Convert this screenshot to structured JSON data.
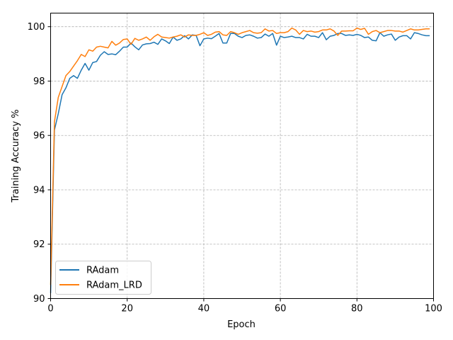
{
  "chart_data": {
    "type": "line",
    "xlabel": "Epoch",
    "ylabel": "Training Accuracy %",
    "xlim": [
      0,
      100
    ],
    "ylim": [
      90,
      100.5
    ],
    "xticks": [
      0,
      20,
      40,
      60,
      80,
      100
    ],
    "yticks": [
      90,
      92,
      94,
      96,
      98,
      100
    ],
    "grid": true,
    "legend_position": "lower-left",
    "series": [
      {
        "name": "RAdam",
        "color": "#1f77b4",
        "x": [
          0,
          1,
          2,
          3,
          4,
          5,
          6,
          7,
          8,
          9,
          10,
          11,
          12,
          13,
          14,
          15,
          16,
          17,
          18,
          19,
          20,
          21,
          22,
          23,
          24,
          25,
          26,
          27,
          28,
          29,
          30,
          31,
          32,
          33,
          34,
          35,
          36,
          37,
          38,
          39,
          40,
          41,
          42,
          43,
          44,
          45,
          46,
          47,
          48,
          49,
          50,
          51,
          52,
          53,
          54,
          55,
          56,
          57,
          58,
          59,
          60,
          61,
          62,
          63,
          64,
          65,
          66,
          67,
          68,
          69,
          70,
          71,
          72,
          73,
          74,
          75,
          76,
          77,
          78,
          79,
          80,
          81,
          82,
          83,
          84,
          85,
          86,
          87,
          88,
          89,
          90,
          91,
          92,
          93,
          94,
          95,
          96,
          97,
          98,
          99
        ],
        "y": [
          90.2,
          96.2,
          96.8,
          97.5,
          97.75,
          98.1,
          98.2,
          98.1,
          98.4,
          98.65,
          98.4,
          98.68,
          98.72,
          98.95,
          99.08,
          98.98,
          99.0,
          98.97,
          99.1,
          99.25,
          99.25,
          99.4,
          99.26,
          99.15,
          99.33,
          99.37,
          99.38,
          99.43,
          99.35,
          99.55,
          99.48,
          99.38,
          99.62,
          99.5,
          99.55,
          99.67,
          99.55,
          99.7,
          99.68,
          99.3,
          99.55,
          99.58,
          99.56,
          99.65,
          99.75,
          99.4,
          99.4,
          99.75,
          99.75,
          99.65,
          99.6,
          99.68,
          99.7,
          99.65,
          99.58,
          99.6,
          99.73,
          99.65,
          99.75,
          99.32,
          99.65,
          99.6,
          99.62,
          99.65,
          99.6,
          99.6,
          99.55,
          99.72,
          99.65,
          99.65,
          99.6,
          99.78,
          99.52,
          99.65,
          99.68,
          99.75,
          99.75,
          99.68,
          99.7,
          99.68,
          99.72,
          99.68,
          99.6,
          99.62,
          99.5,
          99.48,
          99.78,
          99.65,
          99.7,
          99.73,
          99.5,
          99.62,
          99.67,
          99.67,
          99.55,
          99.78,
          99.75,
          99.7,
          99.67,
          99.67
        ]
      },
      {
        "name": "RAdam_LRD",
        "color": "#ff7f0e",
        "x": [
          0,
          1,
          2,
          3,
          4,
          5,
          6,
          7,
          8,
          9,
          10,
          11,
          12,
          13,
          14,
          15,
          16,
          17,
          18,
          19,
          20,
          21,
          22,
          23,
          24,
          25,
          26,
          27,
          28,
          29,
          30,
          31,
          32,
          33,
          34,
          35,
          36,
          37,
          38,
          39,
          40,
          41,
          42,
          43,
          44,
          45,
          46,
          47,
          48,
          49,
          50,
          51,
          52,
          53,
          54,
          55,
          56,
          57,
          58,
          59,
          60,
          61,
          62,
          63,
          64,
          65,
          66,
          67,
          68,
          69,
          70,
          71,
          72,
          73,
          74,
          75,
          76,
          77,
          78,
          79,
          80,
          81,
          82,
          83,
          84,
          85,
          86,
          87,
          88,
          89,
          90,
          91,
          92,
          93,
          94,
          95,
          96,
          97,
          98,
          99
        ],
        "y": [
          90.5,
          96.5,
          97.4,
          97.8,
          98.2,
          98.35,
          98.55,
          98.75,
          98.98,
          98.9,
          99.15,
          99.1,
          99.25,
          99.28,
          99.25,
          99.22,
          99.46,
          99.32,
          99.4,
          99.53,
          99.55,
          99.35,
          99.57,
          99.5,
          99.55,
          99.62,
          99.5,
          99.63,
          99.72,
          99.62,
          99.6,
          99.58,
          99.62,
          99.65,
          99.7,
          99.62,
          99.7,
          99.68,
          99.68,
          99.72,
          99.78,
          99.68,
          99.72,
          99.8,
          99.82,
          99.7,
          99.68,
          99.82,
          99.78,
          99.72,
          99.78,
          99.82,
          99.86,
          99.78,
          99.76,
          99.78,
          99.92,
          99.84,
          99.86,
          99.75,
          99.78,
          99.78,
          99.82,
          99.95,
          99.88,
          99.72,
          99.86,
          99.82,
          99.84,
          99.8,
          99.82,
          99.88,
          99.88,
          99.92,
          99.84,
          99.68,
          99.84,
          99.84,
          99.85,
          99.85,
          99.95,
          99.9,
          99.94,
          99.72,
          99.82,
          99.86,
          99.78,
          99.82,
          99.86,
          99.86,
          99.84,
          99.84,
          99.8,
          99.86,
          99.92,
          99.88,
          99.88,
          99.9,
          99.92,
          99.92
        ]
      }
    ]
  }
}
